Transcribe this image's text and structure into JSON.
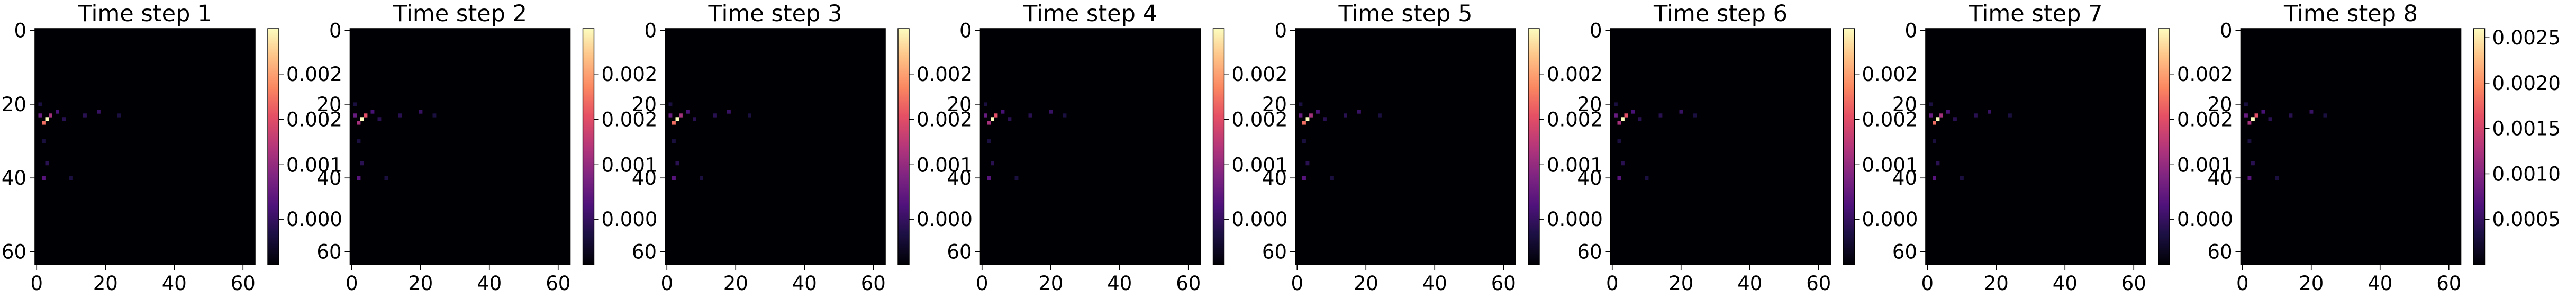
{
  "colormap": "magma",
  "colors": {
    "background": "#000004",
    "axis": "#000000"
  },
  "chart_data": [
    {
      "type": "heatmap",
      "title": "Time step 1",
      "shape": [
        64,
        64
      ],
      "xlim": [
        0,
        63
      ],
      "ylim": [
        63,
        0
      ],
      "xticks": [
        0,
        20,
        40,
        60
      ],
      "yticks": [
        0,
        20,
        40,
        60
      ],
      "tick_labels": {
        "x": [
          "0",
          "20",
          "40",
          "60"
        ],
        "y": [
          "0",
          "20",
          "40",
          "60"
        ]
      },
      "colorbar": {
        "range": [
          0,
          0.0026
        ],
        "tick_labels": [
          "0.000",
          "0.001",
          "0.002",
          "0.002"
        ],
        "tick_values": [
          0.0005,
          0.0011,
          0.0016,
          0.0021
        ]
      },
      "hotspots": [
        {
          "x": 3,
          "y": 24,
          "v": 0.0026
        },
        {
          "x": 2,
          "y": 25,
          "v": 0.0018
        },
        {
          "x": 4,
          "y": 23,
          "v": 0.0012
        },
        {
          "x": 1,
          "y": 23,
          "v": 0.0008
        },
        {
          "x": 2,
          "y": 40,
          "v": 0.0007
        },
        {
          "x": 6,
          "y": 22,
          "v": 0.0006
        },
        {
          "x": 8,
          "y": 24,
          "v": 0.0004
        },
        {
          "x": 14,
          "y": 23,
          "v": 0.0004
        },
        {
          "x": 18,
          "y": 22,
          "v": 0.0005
        },
        {
          "x": 24,
          "y": 23,
          "v": 0.0003
        },
        {
          "x": 3,
          "y": 36,
          "v": 0.0004
        },
        {
          "x": 10,
          "y": 40,
          "v": 0.0003
        },
        {
          "x": 2,
          "y": 30,
          "v": 0.0003
        },
        {
          "x": 1,
          "y": 20,
          "v": 0.0003
        }
      ]
    },
    {
      "type": "heatmap",
      "title": "Time step 2",
      "shape": [
        64,
        64
      ],
      "xlim": [
        0,
        63
      ],
      "ylim": [
        63,
        0
      ],
      "xticks": [
        0,
        20,
        40,
        60
      ],
      "yticks": [
        0,
        20,
        40,
        60
      ],
      "tick_labels": {
        "x": [
          "0",
          "20",
          "40",
          "60"
        ],
        "y": [
          "0",
          "20",
          "40",
          "60"
        ]
      },
      "colorbar": {
        "range": [
          0,
          0.0026
        ],
        "tick_labels": [
          "0.000",
          "0.001",
          "0.002",
          "0.002"
        ],
        "tick_values": [
          0.0005,
          0.0011,
          0.0016,
          0.0021
        ]
      },
      "hotspots": [
        {
          "x": 3,
          "y": 24,
          "v": 0.0026
        },
        {
          "x": 4,
          "y": 23,
          "v": 0.0016
        },
        {
          "x": 2,
          "y": 25,
          "v": 0.0012
        },
        {
          "x": 1,
          "y": 23,
          "v": 0.0008
        },
        {
          "x": 2,
          "y": 40,
          "v": 0.0007
        },
        {
          "x": 6,
          "y": 22,
          "v": 0.0006
        },
        {
          "x": 8,
          "y": 24,
          "v": 0.0004
        },
        {
          "x": 14,
          "y": 23,
          "v": 0.0004
        },
        {
          "x": 20,
          "y": 22,
          "v": 0.0005
        },
        {
          "x": 24,
          "y": 23,
          "v": 0.0003
        },
        {
          "x": 3,
          "y": 36,
          "v": 0.0004
        },
        {
          "x": 10,
          "y": 40,
          "v": 0.0003
        },
        {
          "x": 2,
          "y": 30,
          "v": 0.0003
        },
        {
          "x": 1,
          "y": 20,
          "v": 0.0003
        }
      ]
    },
    {
      "type": "heatmap",
      "title": "Time step 3",
      "shape": [
        64,
        64
      ],
      "xlim": [
        0,
        63
      ],
      "ylim": [
        63,
        0
      ],
      "xticks": [
        0,
        20,
        40,
        60
      ],
      "yticks": [
        0,
        20,
        40,
        60
      ],
      "tick_labels": {
        "x": [
          "0",
          "20",
          "40",
          "60"
        ],
        "y": [
          "0",
          "20",
          "40",
          "60"
        ]
      },
      "colorbar": {
        "range": [
          0,
          0.0026
        ],
        "tick_labels": [
          "0.000",
          "0.001",
          "0.002",
          "0.002"
        ],
        "tick_values": [
          0.0005,
          0.0011,
          0.0016,
          0.0021
        ]
      },
      "hotspots": [
        {
          "x": 3,
          "y": 24,
          "v": 0.0026
        },
        {
          "x": 2,
          "y": 25,
          "v": 0.0018
        },
        {
          "x": 4,
          "y": 23,
          "v": 0.0012
        },
        {
          "x": 1,
          "y": 23,
          "v": 0.0008
        },
        {
          "x": 2,
          "y": 40,
          "v": 0.0007
        },
        {
          "x": 6,
          "y": 22,
          "v": 0.0006
        },
        {
          "x": 8,
          "y": 24,
          "v": 0.0004
        },
        {
          "x": 14,
          "y": 23,
          "v": 0.0004
        },
        {
          "x": 18,
          "y": 22,
          "v": 0.0005
        },
        {
          "x": 24,
          "y": 23,
          "v": 0.0003
        },
        {
          "x": 3,
          "y": 36,
          "v": 0.0004
        },
        {
          "x": 10,
          "y": 40,
          "v": 0.0003
        },
        {
          "x": 2,
          "y": 30,
          "v": 0.0003
        },
        {
          "x": 1,
          "y": 20,
          "v": 0.0003
        }
      ]
    },
    {
      "type": "heatmap",
      "title": "Time step 4",
      "shape": [
        64,
        64
      ],
      "xlim": [
        0,
        63
      ],
      "ylim": [
        63,
        0
      ],
      "xticks": [
        0,
        20,
        40,
        60
      ],
      "yticks": [
        0,
        20,
        40,
        60
      ],
      "tick_labels": {
        "x": [
          "0",
          "20",
          "40",
          "60"
        ],
        "y": [
          "0",
          "20",
          "40",
          "60"
        ]
      },
      "colorbar": {
        "range": [
          0,
          0.0026
        ],
        "tick_labels": [
          "0.000",
          "0.001",
          "0.002",
          "0.002"
        ],
        "tick_values": [
          0.0005,
          0.0011,
          0.0016,
          0.0021
        ]
      },
      "hotspots": [
        {
          "x": 3,
          "y": 24,
          "v": 0.0026
        },
        {
          "x": 4,
          "y": 23,
          "v": 0.0016
        },
        {
          "x": 2,
          "y": 25,
          "v": 0.0012
        },
        {
          "x": 1,
          "y": 23,
          "v": 0.0008
        },
        {
          "x": 2,
          "y": 40,
          "v": 0.0007
        },
        {
          "x": 6,
          "y": 22,
          "v": 0.0006
        },
        {
          "x": 8,
          "y": 24,
          "v": 0.0004
        },
        {
          "x": 14,
          "y": 23,
          "v": 0.0004
        },
        {
          "x": 20,
          "y": 22,
          "v": 0.0005
        },
        {
          "x": 24,
          "y": 23,
          "v": 0.0003
        },
        {
          "x": 3,
          "y": 36,
          "v": 0.0004
        },
        {
          "x": 10,
          "y": 40,
          "v": 0.0003
        },
        {
          "x": 2,
          "y": 30,
          "v": 0.0003
        },
        {
          "x": 1,
          "y": 20,
          "v": 0.0003
        }
      ]
    },
    {
      "type": "heatmap",
      "title": "Time step 5",
      "shape": [
        64,
        64
      ],
      "xlim": [
        0,
        63
      ],
      "ylim": [
        63,
        0
      ],
      "xticks": [
        0,
        20,
        40,
        60
      ],
      "yticks": [
        0,
        20,
        40,
        60
      ],
      "tick_labels": {
        "x": [
          "0",
          "20",
          "40",
          "60"
        ],
        "y": [
          "0",
          "20",
          "40",
          "60"
        ]
      },
      "colorbar": {
        "range": [
          0,
          0.0026
        ],
        "tick_labels": [
          "0.000",
          "0.001",
          "0.002",
          "0.002"
        ],
        "tick_values": [
          0.0005,
          0.0011,
          0.0016,
          0.0021
        ]
      },
      "hotspots": [
        {
          "x": 3,
          "y": 24,
          "v": 0.0026
        },
        {
          "x": 2,
          "y": 25,
          "v": 0.0018
        },
        {
          "x": 4,
          "y": 23,
          "v": 0.0012
        },
        {
          "x": 1,
          "y": 23,
          "v": 0.0008
        },
        {
          "x": 2,
          "y": 40,
          "v": 0.0007
        },
        {
          "x": 6,
          "y": 22,
          "v": 0.0006
        },
        {
          "x": 8,
          "y": 24,
          "v": 0.0004
        },
        {
          "x": 14,
          "y": 23,
          "v": 0.0004
        },
        {
          "x": 18,
          "y": 22,
          "v": 0.0005
        },
        {
          "x": 24,
          "y": 23,
          "v": 0.0003
        },
        {
          "x": 3,
          "y": 36,
          "v": 0.0004
        },
        {
          "x": 10,
          "y": 40,
          "v": 0.0003
        },
        {
          "x": 2,
          "y": 30,
          "v": 0.0003
        },
        {
          "x": 1,
          "y": 20,
          "v": 0.0003
        }
      ]
    },
    {
      "type": "heatmap",
      "title": "Time step 6",
      "shape": [
        64,
        64
      ],
      "xlim": [
        0,
        63
      ],
      "ylim": [
        63,
        0
      ],
      "xticks": [
        0,
        20,
        40,
        60
      ],
      "yticks": [
        0,
        20,
        40,
        60
      ],
      "tick_labels": {
        "x": [
          "0",
          "20",
          "40",
          "60"
        ],
        "y": [
          "0",
          "20",
          "40",
          "60"
        ]
      },
      "colorbar": {
        "range": [
          0,
          0.0026
        ],
        "tick_labels": [
          "0.000",
          "0.001",
          "0.002",
          "0.002"
        ],
        "tick_values": [
          0.0005,
          0.0011,
          0.0016,
          0.0021
        ]
      },
      "hotspots": [
        {
          "x": 3,
          "y": 24,
          "v": 0.0026
        },
        {
          "x": 4,
          "y": 23,
          "v": 0.0016
        },
        {
          "x": 2,
          "y": 25,
          "v": 0.0012
        },
        {
          "x": 1,
          "y": 23,
          "v": 0.0008
        },
        {
          "x": 2,
          "y": 40,
          "v": 0.0007
        },
        {
          "x": 6,
          "y": 22,
          "v": 0.0006
        },
        {
          "x": 8,
          "y": 24,
          "v": 0.0004
        },
        {
          "x": 14,
          "y": 23,
          "v": 0.0004
        },
        {
          "x": 20,
          "y": 22,
          "v": 0.0005
        },
        {
          "x": 24,
          "y": 23,
          "v": 0.0003
        },
        {
          "x": 3,
          "y": 36,
          "v": 0.0004
        },
        {
          "x": 10,
          "y": 40,
          "v": 0.0003
        },
        {
          "x": 2,
          "y": 30,
          "v": 0.0003
        },
        {
          "x": 1,
          "y": 20,
          "v": 0.0003
        }
      ]
    },
    {
      "type": "heatmap",
      "title": "Time step 7",
      "shape": [
        64,
        64
      ],
      "xlim": [
        0,
        63
      ],
      "ylim": [
        63,
        0
      ],
      "xticks": [
        0,
        20,
        40,
        60
      ],
      "yticks": [
        0,
        20,
        40,
        60
      ],
      "tick_labels": {
        "x": [
          "0",
          "20",
          "40",
          "60"
        ],
        "y": [
          "0",
          "20",
          "40",
          "60"
        ]
      },
      "colorbar": {
        "range": [
          0,
          0.0026
        ],
        "tick_labels": [
          "0.000",
          "0.001",
          "0.002",
          "0.002"
        ],
        "tick_values": [
          0.0005,
          0.0011,
          0.0016,
          0.0021
        ]
      },
      "hotspots": [
        {
          "x": 3,
          "y": 24,
          "v": 0.0026
        },
        {
          "x": 2,
          "y": 25,
          "v": 0.0018
        },
        {
          "x": 4,
          "y": 23,
          "v": 0.0012
        },
        {
          "x": 1,
          "y": 23,
          "v": 0.0008
        },
        {
          "x": 2,
          "y": 40,
          "v": 0.0007
        },
        {
          "x": 6,
          "y": 22,
          "v": 0.0006
        },
        {
          "x": 8,
          "y": 24,
          "v": 0.0004
        },
        {
          "x": 14,
          "y": 23,
          "v": 0.0004
        },
        {
          "x": 18,
          "y": 22,
          "v": 0.0005
        },
        {
          "x": 24,
          "y": 23,
          "v": 0.0003
        },
        {
          "x": 3,
          "y": 36,
          "v": 0.0004
        },
        {
          "x": 10,
          "y": 40,
          "v": 0.0003
        },
        {
          "x": 2,
          "y": 30,
          "v": 0.0003
        },
        {
          "x": 1,
          "y": 20,
          "v": 0.0003
        }
      ]
    },
    {
      "type": "heatmap",
      "title": "Time step 8",
      "shape": [
        64,
        64
      ],
      "xlim": [
        0,
        63
      ],
      "ylim": [
        63,
        0
      ],
      "xticks": [
        0,
        20,
        40,
        60
      ],
      "yticks": [
        0,
        20,
        40,
        60
      ],
      "tick_labels": {
        "x": [
          "0",
          "20",
          "40",
          "60"
        ],
        "y": [
          "0",
          "20",
          "40",
          "60"
        ]
      },
      "colorbar": {
        "range": [
          0,
          0.0026
        ],
        "tick_labels": [
          "0.0005",
          "0.0010",
          "0.0015",
          "0.0020",
          "0.0025"
        ],
        "tick_values": [
          0.0005,
          0.001,
          0.0015,
          0.002,
          0.0025
        ]
      },
      "hotspots": [
        {
          "x": 3,
          "y": 24,
          "v": 0.0026
        },
        {
          "x": 4,
          "y": 23,
          "v": 0.0016
        },
        {
          "x": 2,
          "y": 25,
          "v": 0.0012
        },
        {
          "x": 1,
          "y": 23,
          "v": 0.0008
        },
        {
          "x": 2,
          "y": 40,
          "v": 0.0007
        },
        {
          "x": 6,
          "y": 22,
          "v": 0.0006
        },
        {
          "x": 8,
          "y": 24,
          "v": 0.0004
        },
        {
          "x": 14,
          "y": 23,
          "v": 0.0004
        },
        {
          "x": 20,
          "y": 22,
          "v": 0.0005
        },
        {
          "x": 24,
          "y": 23,
          "v": 0.0003
        },
        {
          "x": 3,
          "y": 36,
          "v": 0.0004
        },
        {
          "x": 10,
          "y": 40,
          "v": 0.0003
        },
        {
          "x": 2,
          "y": 30,
          "v": 0.0003
        },
        {
          "x": 1,
          "y": 20,
          "v": 0.0003
        }
      ]
    }
  ]
}
